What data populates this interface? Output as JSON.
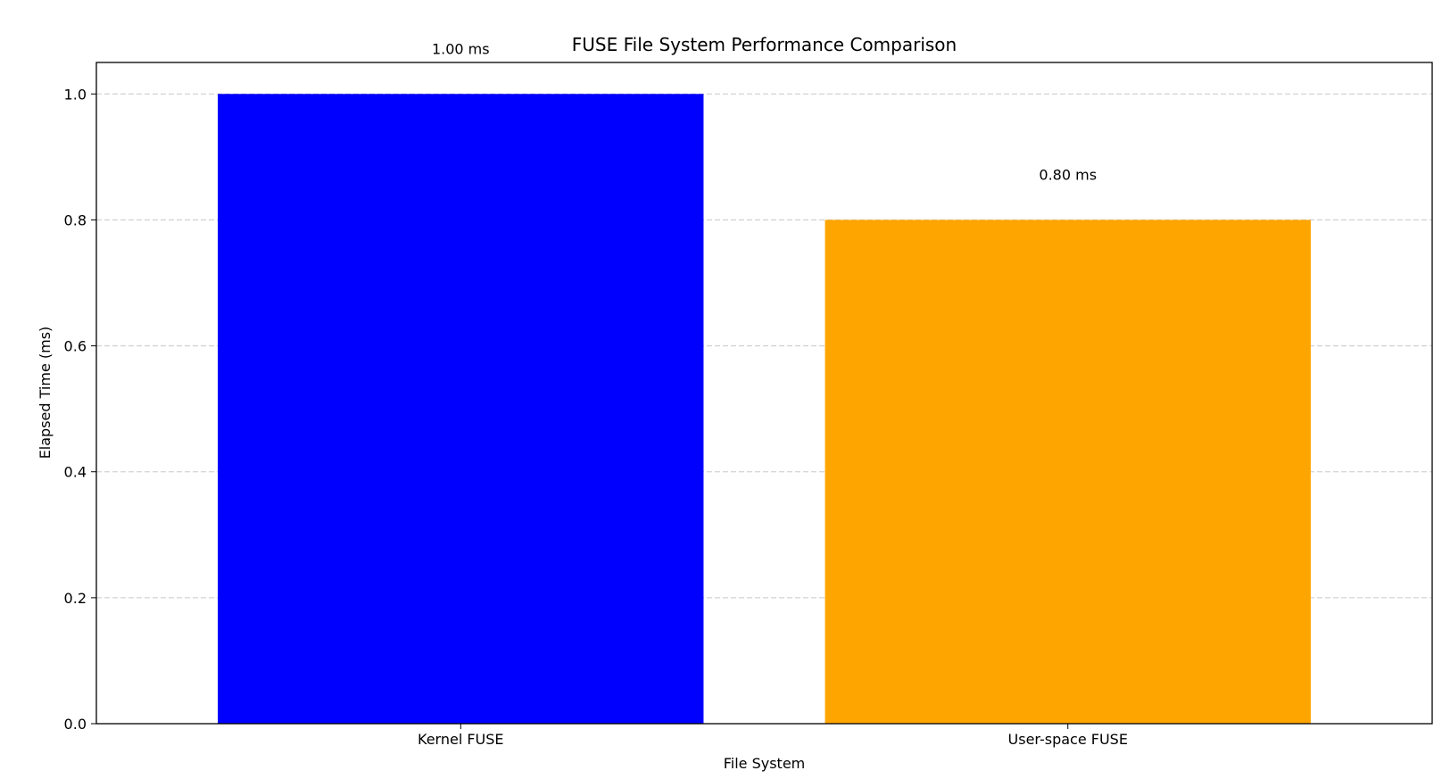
{
  "chart_data": {
    "type": "bar",
    "title": "FUSE File System Performance Comparison",
    "xlabel": "File System",
    "ylabel": "Elapsed Time (ms)",
    "categories": [
      "Kernel FUSE",
      "User-space FUSE"
    ],
    "values": [
      1.0,
      0.8
    ],
    "value_labels": [
      "1.00 ms",
      "0.80 ms"
    ],
    "colors": [
      "#0000ff",
      "#ffa500"
    ],
    "ylim": [
      0,
      1.05
    ],
    "yticks": [
      0.0,
      0.2,
      0.4,
      0.6,
      0.8,
      1.0
    ],
    "ytick_labels": [
      "0.0",
      "0.2",
      "0.4",
      "0.6",
      "0.8",
      "1.0"
    ],
    "grid": "y-dashed",
    "legend": "none"
  }
}
